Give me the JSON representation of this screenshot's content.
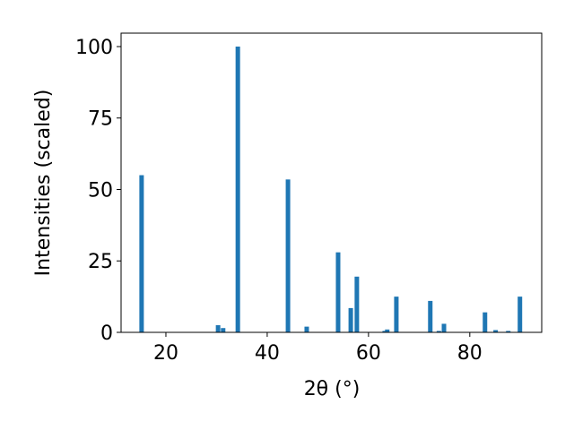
{
  "chart_data": {
    "type": "bar",
    "x": [
      15.2,
      30.3,
      31.3,
      34.2,
      44.1,
      47.8,
      54.0,
      56.5,
      57.7,
      63.2,
      63.7,
      65.5,
      72.2,
      73.9,
      74.9,
      83.0,
      85.1,
      87.6,
      89.9
    ],
    "values": [
      55,
      2.5,
      1.5,
      100,
      53.5,
      2,
      28,
      8.5,
      19.5,
      0.5,
      1,
      12.5,
      11,
      0.5,
      3,
      7,
      0.8,
      0.5,
      12.5
    ],
    "color": "#1f77b4",
    "xlabel": "2θ (°)",
    "ylabel": "Intensities (scaled)",
    "xlim": [
      11.15,
      94.2
    ],
    "ylim": [
      0,
      104.7
    ],
    "xticks": [
      20,
      40,
      60,
      80
    ],
    "yticks": [
      0,
      25,
      50,
      75,
      100
    ]
  }
}
